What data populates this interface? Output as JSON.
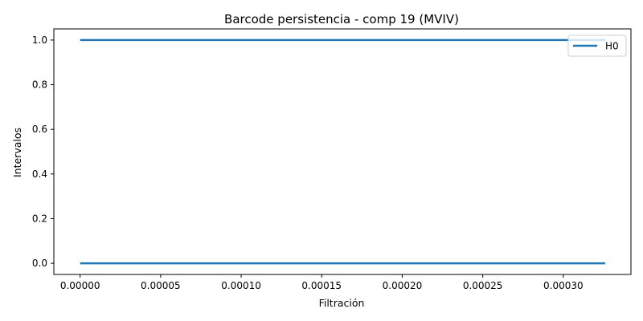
{
  "chart_data": {
    "type": "line",
    "title": "Barcode persistencia - comp 19 (MVIV)",
    "xlabel": "Filtración",
    "ylabel": "Intervalos",
    "xlim": [
      -1.63e-05,
      0.000342
    ],
    "ylim": [
      -0.05,
      1.05
    ],
    "xticks": [
      0,
      5e-05,
      0.0001,
      0.00015,
      0.0002,
      0.00025,
      0.0003
    ],
    "xtick_labels": [
      "0.00000",
      "0.00005",
      "0.00010",
      "0.00015",
      "0.00020",
      "0.00025",
      "0.00030"
    ],
    "yticks": [
      0,
      0.2,
      0.4,
      0.6,
      0.8,
      1.0
    ],
    "ytick_labels": [
      "0.0",
      "0.2",
      "0.4",
      "0.6",
      "0.8",
      "1.0"
    ],
    "grid": false,
    "legend_position": "top-right",
    "series": [
      {
        "name": "H0",
        "color": "#1f77b4",
        "bars": [
          {
            "birth": 0.0,
            "death": 0.000326,
            "y": 0
          },
          {
            "birth": 0.0,
            "death": 0.000326,
            "y": 1
          }
        ]
      }
    ]
  }
}
